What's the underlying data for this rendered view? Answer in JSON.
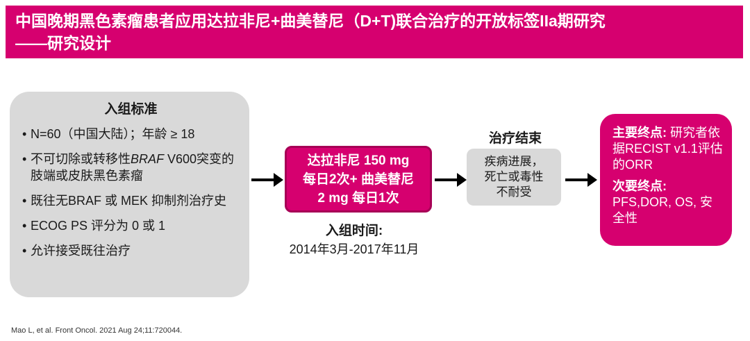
{
  "header": {
    "title_line1": "中国晚期黑色素瘤患者应用达拉非尼+曲美替尼（D+T)联合治疗的开放标签IIa期研究",
    "title_line2": "——研究设计"
  },
  "criteria": {
    "title": "入组标准",
    "items": [
      {
        "text": "N=60（中国大陆）；年龄 ≥ 18"
      },
      {
        "pre": "不可切除或转移性",
        "italic": "BRAF",
        "post": " V600突变的肢端或皮肤黑色素瘤"
      },
      {
        "text": "既往无BRAF 或 MEK 抑制剂治疗史"
      },
      {
        "text": "ECOG PS 评分为 0 或 1"
      },
      {
        "text": "允许接受既往治疗"
      }
    ]
  },
  "treatment": {
    "line1": "达拉非尼 150 mg",
    "line2": "每日2次+ 曲美替尼",
    "line3": "2 mg 每日1次"
  },
  "enrollment": {
    "label": "入组时间:",
    "value": "2014年3月-2017年11月"
  },
  "treatment_end": {
    "title": "治疗结束",
    "line1": "疾病进展，",
    "line2": "死亡或毒性",
    "line3": "不耐受"
  },
  "endpoints": {
    "primary_label": "主要终点:",
    "primary_text": " 研究者依据RECIST v1.1评估的ORR",
    "secondary_label": "次要终点:",
    "secondary_text": "PFS,DOR, OS, 安全性"
  },
  "citation": "Mao L, et al. Front Oncol. 2021 Aug 24;11:720044.",
  "colors": {
    "accent": "#d6006f",
    "box_gray": "#d9d9d9"
  }
}
